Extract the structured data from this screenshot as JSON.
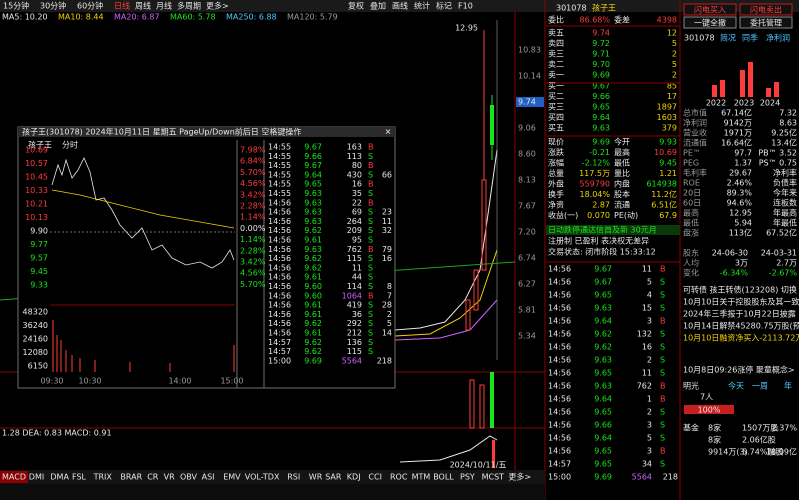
{
  "toolbar": {
    "periods": [
      "15分钟",
      "30分钟",
      "60分钟",
      "日线",
      "周线",
      "月线",
      "多周期",
      "更多>"
    ],
    "tools": [
      "复权",
      "叠加",
      "画线",
      "统计",
      "标记",
      "F10"
    ]
  },
  "ma_line": [
    "MA5: 10.20",
    "MA10: 8.44",
    "MA20: 6.87",
    "MA60: 5.78",
    "MA250: 6.88",
    "MA120: 5.79"
  ],
  "main_chart": {
    "high_label": "12.95",
    "price_labels": [
      "10.83",
      "10.14",
      "9.74",
      "9.06",
      "8.60",
      "8.13",
      "7.67",
      "7.20",
      "6.74",
      "6.27",
      "5.81",
      "5.34"
    ],
    "date_label": "2024/10/11/五"
  },
  "popup": {
    "title": "孩子王(301078) 2024年10月11日 星期五 PageUp/Down前后日 空格键操作",
    "stock_name": "孩子王",
    "mode": "分时",
    "price_labels": [
      "10.69",
      "10.57",
      "10.45",
      "10.33",
      "10.21",
      "10.13",
      "9.90",
      "9.77",
      "9.57",
      "9.45",
      "9.33"
    ],
    "pct_labels": [
      "7.98%",
      "6.84%",
      "5.70%",
      "4.56%",
      "3.42%",
      "2.28%",
      "1.14%",
      "0.00%",
      "1.14%",
      "2.28%",
      "3.42%",
      "4.56%",
      "5.70%"
    ],
    "volume_labels": [
      "48320",
      "36240",
      "24160",
      "12080",
      "6150"
    ],
    "time_labels": [
      "09:30",
      "10:30",
      "14:00",
      "15:00"
    ],
    "trades": [
      [
        "14:55",
        "9.67",
        "163",
        "B",
        ""
      ],
      [
        "14:55",
        "9.66",
        "113",
        "S",
        ""
      ],
      [
        "14:55",
        "9.67",
        "80",
        "B",
        ""
      ],
      [
        "14:55",
        "9.64",
        "430",
        "S",
        "66"
      ],
      [
        "14:55",
        "9.65",
        "16",
        "B",
        ""
      ],
      [
        "14:55",
        "9.63",
        "35",
        "S",
        ""
      ],
      [
        "14:56",
        "9.63",
        "22",
        "B",
        ""
      ],
      [
        "14:56",
        "9.63",
        "69",
        "S",
        "23"
      ],
      [
        "14:56",
        "9.63",
        "264",
        "S",
        "11"
      ],
      [
        "14:56",
        "9.62",
        "209",
        "S",
        "32"
      ],
      [
        "14:56",
        "9.61",
        "95",
        "S",
        ""
      ],
      [
        "14:56",
        "9.63",
        "762",
        "B",
        "79"
      ],
      [
        "14:56",
        "9.62",
        "115",
        "S",
        "16"
      ],
      [
        "14:56",
        "9.62",
        "11",
        "S",
        ""
      ],
      [
        "14:56",
        "9.61",
        "44",
        "S",
        ""
      ],
      [
        "14:56",
        "9.60",
        "114",
        "S",
        "8"
      ],
      [
        "14:56",
        "9.60",
        "1064",
        "B",
        "7"
      ],
      [
        "14:56",
        "9.61",
        "419",
        "S",
        "28"
      ],
      [
        "14:56",
        "9.61",
        "36",
        "S",
        "2"
      ],
      [
        "14:56",
        "9.62",
        "292",
        "S",
        "5"
      ],
      [
        "14:56",
        "9.61",
        "212",
        "S",
        "14"
      ],
      [
        "14:57",
        "9.62",
        "136",
        "S",
        ""
      ],
      [
        "14:57",
        "9.62",
        "115",
        "S",
        ""
      ],
      [
        "15:00",
        "9.69",
        "5564",
        "",
        "218"
      ]
    ]
  },
  "order_book": {
    "code": "301078",
    "name": "孩子王",
    "header": [
      "委比",
      "86.68%",
      "委差",
      "4398"
    ],
    "asks": [
      [
        "卖五",
        "9.74",
        "12"
      ],
      [
        "卖四",
        "9.72",
        "5"
      ],
      [
        "卖三",
        "9.71",
        "2"
      ],
      [
        "卖二",
        "9.70",
        "5"
      ],
      [
        "卖一",
        "9.69",
        "2"
      ]
    ],
    "bids": [
      [
        "买一",
        "9.67",
        "85"
      ],
      [
        "买二",
        "9.66",
        "17"
      ],
      [
        "买三",
        "9.65",
        "1897"
      ],
      [
        "买四",
        "9.64",
        "1603"
      ],
      [
        "买五",
        "9.63",
        "379"
      ]
    ],
    "stats": [
      [
        "现价",
        "9.69",
        "今开",
        "9.93"
      ],
      [
        "涨跌",
        "-0.21",
        "最高",
        "10.69"
      ],
      [
        "涨幅",
        "-2.12%",
        "最低",
        "9.45"
      ],
      [
        "总量",
        "117.5万",
        "量比",
        "1.21"
      ],
      [
        "外盘",
        "559790",
        "内盘",
        "614938"
      ],
      [
        "换手",
        "18.04%",
        "股本",
        "11.2亿"
      ],
      [
        "净资",
        "2.87",
        "流通",
        "6.51亿"
      ],
      [
        "收益(一)",
        "0.070",
        "PE(动)",
        "67.9"
      ]
    ],
    "notes": [
      "日动跌停通达信首及新  30元月",
      "注册制 已盈利 表决权无差异",
      "交易状态: 闭市阶段 15:33:12"
    ],
    "trades": [
      [
        "14:56",
        "9.67",
        "11",
        "B",
        ""
      ],
      [
        "14:56",
        "9.67",
        "5",
        "S",
        ""
      ],
      [
        "14:56",
        "9.65",
        "4",
        "S",
        ""
      ],
      [
        "14:56",
        "9.63",
        "15",
        "S",
        ""
      ],
      [
        "14:56",
        "9.64",
        "3",
        "B",
        ""
      ],
      [
        "14:56",
        "9.62",
        "132",
        "S",
        ""
      ],
      [
        "14:56",
        "9.62",
        "16",
        "S",
        ""
      ],
      [
        "14:56",
        "9.63",
        "2",
        "S",
        ""
      ],
      [
        "14:56",
        "9.65",
        "11",
        "S",
        ""
      ],
      [
        "14:56",
        "9.63",
        "762",
        "B",
        ""
      ],
      [
        "14:56",
        "9.64",
        "1",
        "B",
        ""
      ],
      [
        "14:56",
        "9.65",
        "2",
        "S",
        ""
      ],
      [
        "14:56",
        "9.66",
        "3",
        "S",
        ""
      ],
      [
        "14:56",
        "9.64",
        "5",
        "S",
        ""
      ],
      [
        "14:56",
        "9.65",
        "3",
        "B",
        ""
      ],
      [
        "14:57",
        "9.65",
        "34",
        "S",
        ""
      ],
      [
        "15:00",
        "9.69",
        "5564",
        "",
        "218"
      ]
    ]
  },
  "side_panel": {
    "buttons": [
      "闪电买入",
      "闪电卖出",
      "一键全撤",
      "委托管理"
    ],
    "tabs": [
      "301078",
      "简况",
      "同季",
      "净利润"
    ],
    "years": [
      "2022",
      "2023",
      "2024"
    ],
    "stats": [
      [
        "总市值",
        "67.14亿",
        "7.32"
      ],
      [
        "净利润",
        "9142万",
        "8.63"
      ],
      [
        "营业收",
        "1971万",
        "9.25亿"
      ],
      [
        "流通值",
        "16.64亿",
        "13.4亿"
      ],
      [
        "PE™",
        "97.7",
        "PB™ 3.52"
      ],
      [
        "PEG",
        "1.37",
        "PS™ 0.75"
      ],
      [
        "毛利率",
        "29.67",
        "净利率"
      ],
      [
        "ROE",
        "2.46%",
        "负债率"
      ],
      [
        "20日",
        "89.3%",
        "今年来"
      ],
      [
        "60日",
        "94.6%",
        "连板数"
      ],
      [
        "最高",
        "12.95",
        "年最高"
      ],
      [
        "最低",
        "5.94",
        "年最低"
      ],
      [
        "盘涨",
        "113亿",
        "67.52亿"
      ]
    ],
    "holders": [
      [
        "股东",
        "24-06-30",
        "24-03-31"
      ],
      [
        "人均",
        "3万",
        "2.7万"
      ],
      [
        "变化",
        "-6.34%",
        "-2.67%"
      ]
    ],
    "news": [
      "可转债 孩王转债(123208) 切换",
      "10月10日关于控股股东及其一致",
      "2024年三季报于10月22日披露",
      "10月14日解禁45280.75万股(预估",
      "10月10日融资净买入-2113.72万"
    ],
    "event": "10月8日09:26涨停 聚童概念>",
    "widget": {
      "tabs": [
        "明光",
        "今天",
        "一周",
        "年"
      ],
      "people": "7人",
      "bar_label": "100%",
      "rows": [
        [
          "基金",
          "8家",
          "1507万股",
          "2.37%"
        ],
        [
          "",
          "8家",
          "2.06亿股",
          ""
        ],
        [
          "",
          "9914万(3)",
          "5.74%融股",
          "18.09亿"
        ]
      ]
    }
  },
  "indicator": {
    "macd_line": "1.28  DEA: 0.83  MACD: 0.91",
    "tabs": [
      "MACD",
      "DMI",
      "DMA",
      "FSL",
      "TRIX",
      "BRAR",
      "CR",
      "VR",
      "OBV",
      "ASI",
      "EMV",
      "VOL-TDX",
      "RSI",
      "WR",
      "SAR",
      "KDJ",
      "CCI",
      "ROC",
      "MTM",
      "BOLL",
      "PSY",
      "MCST",
      "更多>"
    ]
  }
}
